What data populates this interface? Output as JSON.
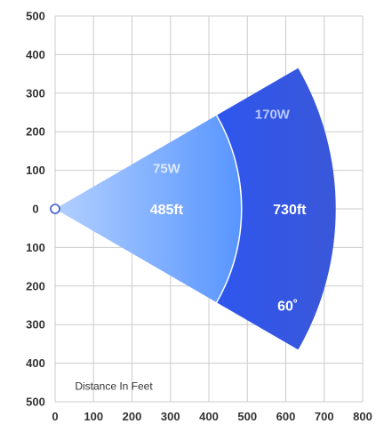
{
  "chart_data": {
    "type": "area",
    "xlabel": "Distance In Feet",
    "xlim": [
      0,
      800
    ],
    "ylim": [
      -500,
      500
    ],
    "x_ticks": [
      "0",
      "100",
      "200",
      "300",
      "400",
      "500",
      "600",
      "700",
      "800"
    ],
    "y_ticks": [
      "500",
      "400",
      "300",
      "200",
      "100",
      "0",
      "100",
      "200",
      "300",
      "400",
      "500"
    ],
    "grid": true,
    "source_point": [
      0,
      0
    ],
    "beam_angle_deg": 60,
    "zones": [
      {
        "wattage": "75W",
        "range_label": "485ft",
        "range_ft": 485,
        "color_near": "#b3d0ff",
        "color_far": "#5795ff"
      },
      {
        "wattage": "170W",
        "range_label": "730ft",
        "range_ft": 730,
        "color_near": "#2e56ee",
        "color_far": "#3a57d8"
      }
    ],
    "angle_label": "60˚"
  }
}
